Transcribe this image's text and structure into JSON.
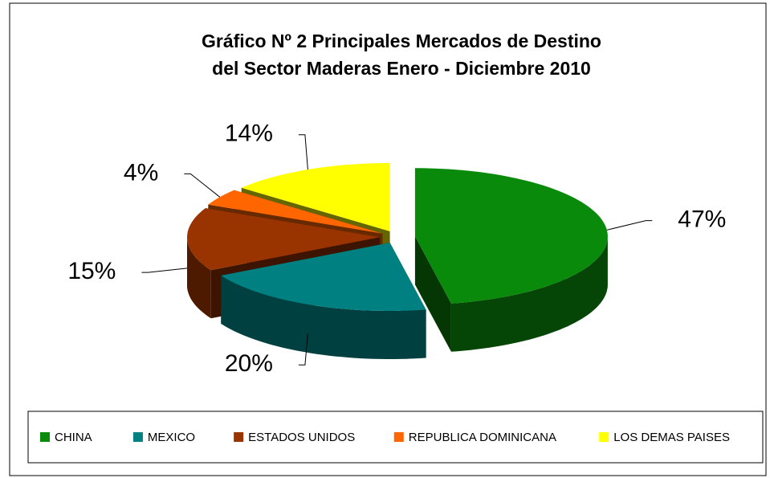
{
  "chart_data": {
    "type": "pie",
    "title": "Gráfico Nº 2 Principales Mercados de Destino del Sector Maderas Enero - Diciembre 2010",
    "categories": [
      "CHINA",
      "MEXICO",
      "ESTADOS UNIDOS",
      "REPUBLICA DOMINICANA",
      "LOS DEMAS PAISES"
    ],
    "values": [
      47,
      20,
      15,
      4,
      14
    ],
    "value_labels": [
      "47%",
      "20%",
      "15%",
      "4%",
      "14%"
    ],
    "colors": [
      "#0a8a0a",
      "#008080",
      "#993300",
      "#ff6600",
      "#ffff00"
    ],
    "legend": "bottom"
  }
}
